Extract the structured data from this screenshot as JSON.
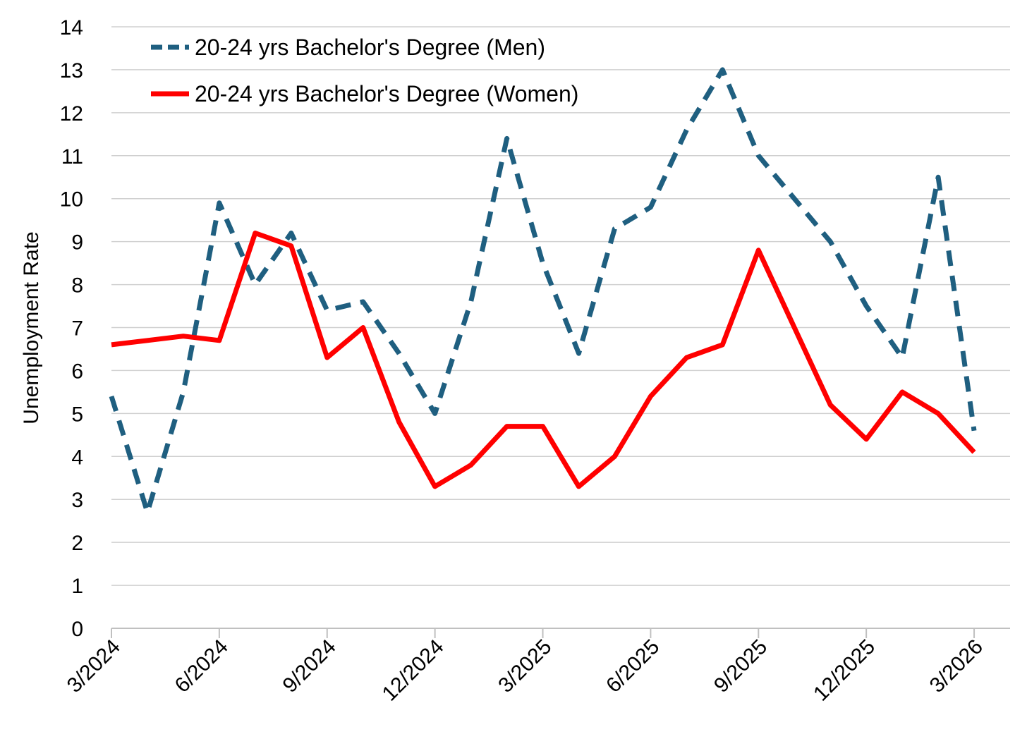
{
  "chart_data": {
    "type": "line",
    "title": "",
    "xlabel": "",
    "ylabel": "Unemployment Rate",
    "ylim": [
      0,
      14
    ],
    "yticks": [
      0,
      1,
      2,
      3,
      4,
      5,
      6,
      7,
      8,
      9,
      10,
      11,
      12,
      13,
      14
    ],
    "xlim": [
      "2024-03",
      "2026-04"
    ],
    "xticks": [
      {
        "value": "2024-03",
        "label": "3/2024"
      },
      {
        "value": "2024-06",
        "label": "6/2024"
      },
      {
        "value": "2024-09",
        "label": "9/2024"
      },
      {
        "value": "2024-12",
        "label": "12/2024"
      },
      {
        "value": "2025-03",
        "label": "3/2025"
      },
      {
        "value": "2025-06",
        "label": "6/2025"
      },
      {
        "value": "2025-09",
        "label": "9/2025"
      },
      {
        "value": "2025-12",
        "label": "12/2025"
      },
      {
        "value": "2026-03",
        "label": "3/2026"
      }
    ],
    "grid": "horizontal",
    "legend": "top-left",
    "series": [
      {
        "name": "20-24 yrs Bachelor's Degree (Men)",
        "color": "#1f5f80",
        "style": "dashed",
        "x": [
          "2024-03",
          "2024-04",
          "2024-05",
          "2024-06",
          "2024-07",
          "2024-08",
          "2024-09",
          "2024-10",
          "2024-11",
          "2024-12",
          "2025-01",
          "2025-02",
          "2025-03",
          "2025-04",
          "2025-05",
          "2025-06",
          "2025-07",
          "2025-08",
          "2025-09",
          "2025-10",
          "2025-11",
          "2025-12",
          "2026-01",
          "2026-02",
          "2026-03"
        ],
        "values": [
          5.4,
          2.7,
          5.5,
          9.9,
          8.0,
          9.2,
          7.4,
          7.6,
          6.4,
          5.0,
          7.6,
          11.4,
          8.5,
          6.4,
          9.3,
          9.8,
          11.6,
          13.0,
          11.0,
          10.0,
          9.0,
          7.5,
          6.3,
          10.5,
          4.6
        ]
      },
      {
        "name": "20-24 yrs Bachelor's Degree (Women)",
        "color": "#ff0000",
        "style": "solid",
        "x": [
          "2024-03",
          "2024-04",
          "2024-05",
          "2024-06",
          "2024-07",
          "2024-08",
          "2024-09",
          "2024-10",
          "2024-11",
          "2024-12",
          "2025-01",
          "2025-02",
          "2025-03",
          "2025-04",
          "2025-05",
          "2025-06",
          "2025-07",
          "2025-08",
          "2025-09",
          "2025-10",
          "2025-11",
          "2025-12",
          "2026-01",
          "2026-02",
          "2026-03"
        ],
        "values": [
          6.6,
          6.7,
          6.8,
          6.7,
          9.2,
          8.9,
          6.3,
          7.0,
          4.8,
          3.3,
          3.8,
          4.7,
          4.7,
          3.3,
          4.0,
          5.4,
          6.3,
          6.6,
          8.8,
          7.0,
          5.2,
          4.4,
          5.5,
          5.0,
          4.1
        ]
      }
    ]
  }
}
